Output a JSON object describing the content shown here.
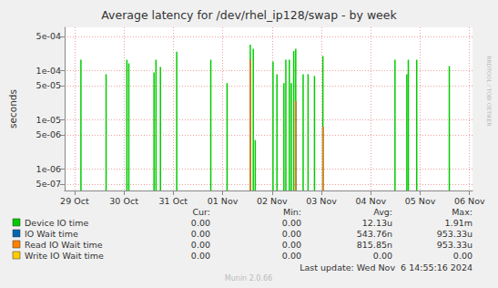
{
  "chart_data": {
    "type": "line",
    "title": "Average latency for /dev/rhel_ip128/swap - by week",
    "y_label": "seconds",
    "log": "y",
    "grid": true,
    "legend": "bottom left",
    "xlim": [
      -0.2,
      8.06
    ],
    "xticks": [
      {
        "value": 0,
        "label": "29 Oct"
      },
      {
        "value": 1,
        "label": "30 Oct"
      },
      {
        "value": 2,
        "label": "31 Oct"
      },
      {
        "value": 3,
        "label": "01 Nov"
      },
      {
        "value": 4,
        "label": "02 Nov"
      },
      {
        "value": 5,
        "label": "03 Nov"
      },
      {
        "value": 6,
        "label": "04 Nov"
      },
      {
        "value": 7,
        "label": "05 Nov"
      },
      {
        "value": 8,
        "label": "06 Nov"
      }
    ],
    "ylim": [
      3.7e-07,
      0.00076
    ],
    "yticks": [
      {
        "value": 5e-07,
        "label": "5e-07"
      },
      {
        "value": 1e-06,
        "label": "1e-06"
      },
      {
        "value": 5e-06,
        "label": "5e-06"
      },
      {
        "value": 1e-05,
        "label": "1e-05"
      },
      {
        "value": 5e-05,
        "label": "5e-05"
      },
      {
        "value": 0.0001,
        "label": "1e-04"
      },
      {
        "value": 0.0005,
        "label": "5e-04"
      }
    ],
    "stat_columns": [
      "Cur:",
      "Min:",
      "Avg:",
      "Max:"
    ],
    "series": [
      {
        "name": "Device IO time",
        "color": "#00cc00",
        "x": [
          0.13,
          0.64,
          1.06,
          1.1,
          1.61,
          1.65,
          1.74,
          2.07,
          2.76,
          3.09,
          3.56,
          3.62,
          3.66,
          4.02,
          4.1,
          4.24,
          4.28,
          4.35,
          4.39,
          4.44,
          4.48,
          4.63,
          4.73,
          4.86,
          5.03,
          6.49,
          6.73,
          6.76,
          6.93,
          7.59
        ],
        "values": [
          0.000167,
          8.5e-05,
          0.000167,
          0.000141,
          9.2e-05,
          0.000167,
          0.000119,
          0.000244,
          0.000167,
          5.6e-05,
          0.00034,
          0.00028,
          3.9e-06,
          0.000153,
          8.5e-05,
          5.6e-05,
          0.000167,
          0.000167,
          5.6e-05,
          0.00025,
          0.00028,
          8.5e-05,
          8.5e-05,
          7.8e-05,
          0.000198,
          0.000167,
          8.5e-05,
          0.000167,
          0.000167,
          0.000124
        ],
        "stats": [
          "0.00",
          "0.00",
          "12.13u",
          "1.91m"
        ]
      },
      {
        "name": "IO Wait time",
        "color": "#0066b3",
        "x": [
          3.56,
          4.48,
          5.03
        ],
        "values": [
          0.000167,
          2.4e-05,
          7.3e-06
        ],
        "stats": [
          "0.00",
          "0.00",
          "543.76n",
          "953.33u"
        ]
      },
      {
        "name": "Read IO Wait time",
        "color": "#ff8000",
        "x": [
          3.56,
          4.48,
          5.03
        ],
        "values": [
          0.000167,
          2.4e-05,
          7.3e-06
        ],
        "stats": [
          "0.00",
          "0.00",
          "815.85n",
          "953.33u"
        ]
      },
      {
        "name": "Write IO Wait time",
        "color": "#ffcc00",
        "x": [],
        "values": [],
        "stats": [
          "0.00",
          "0.00",
          "0.00",
          "0.00"
        ]
      }
    ],
    "footer": "Last update: Wed Nov  6 14:55:16 2024",
    "credit": "Munin 2.0.66",
    "watermark": "RRDTOOL / TOBI OETIKER"
  }
}
